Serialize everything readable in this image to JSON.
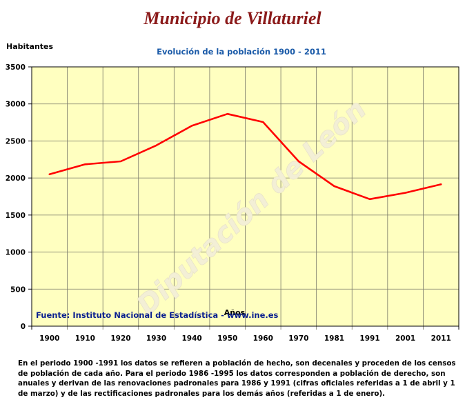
{
  "page": {
    "title": "Municipio de Villaturiel",
    "note": "En el periodo 1900 -1991 los datos se refieren a población de hecho, son decenales y proceden de los censos de población de cada año. Para el periodo 1986 -1995 los datos corresponden a población de derecho, son anuales y derivan de las renovaciones padronales para 1986 y 1991 (cifras oficiales referidas a 1 de abril y 1 de marzo) y de las rectificaciones padronales para los demás años (referidas a 1 de enero).",
    "watermark": "Diputación de León"
  },
  "chart_data": {
    "type": "line",
    "title": "Evolución de la población 1900 - 2011",
    "xlabel": "Años",
    "ylabel": "Habitantes",
    "source": "Fuente: Instituto Nacional de Estadística - www.ine.es",
    "categories": [
      "1900",
      "1910",
      "1920",
      "1930",
      "1940",
      "1950",
      "1960",
      "1970",
      "1981",
      "1991",
      "2001",
      "2011"
    ],
    "series": [
      {
        "values": [
          2050,
          2185,
          2225,
          2440,
          2705,
          2865,
          2755,
          2225,
          1890,
          1715,
          1800,
          1915
        ]
      }
    ],
    "ylim": [
      0,
      3500
    ],
    "yticks": [
      "0",
      "500",
      "1000",
      "1500",
      "2000",
      "2500",
      "3000",
      "3500"
    ],
    "grid": true,
    "colors": {
      "plot_bg": "#ffffc0",
      "line": "#ff0000",
      "title": "#1a5aa8",
      "source": "#0a1f8f"
    }
  }
}
